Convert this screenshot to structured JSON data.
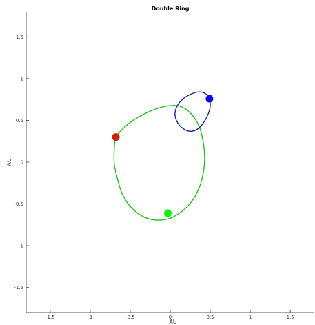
{
  "chart_data": {
    "type": "line",
    "title": "Double Ring",
    "xlabel": "AU",
    "ylabel": "AU",
    "xlim": [
      -1.8,
      1.8
    ],
    "ylim": [
      -1.8,
      1.8
    ],
    "x_ticks": [
      -1.5,
      -1,
      -0.5,
      0,
      0.5,
      1,
      1.5
    ],
    "y_ticks": [
      -1.5,
      -1,
      -0.5,
      0,
      0.5,
      1,
      1.5
    ],
    "x_tick_labels": [
      "-1.5",
      "-1",
      "-0.5",
      "0",
      "0.5",
      "1",
      "1.5"
    ],
    "y_tick_labels": [
      "-1.5",
      "-1",
      "-0.5",
      "0",
      "0.5",
      "1",
      "1.5"
    ],
    "grid": false,
    "series": [
      {
        "color": "#22bb22",
        "x": [
          -0.68,
          -0.58,
          -0.45,
          -0.25,
          -0.05,
          0.12,
          0.26,
          0.36,
          0.41,
          0.43,
          0.41,
          0.36,
          0.26,
          0.13,
          -0.03,
          -0.21,
          -0.36,
          -0.5,
          -0.6,
          -0.66,
          -0.7,
          -0.7,
          -0.68
        ],
        "y": [
          0.3,
          0.41,
          0.51,
          0.61,
          0.67,
          0.67,
          0.58,
          0.43,
          0.25,
          0.05,
          -0.14,
          -0.31,
          -0.48,
          -0.6,
          -0.68,
          -0.69,
          -0.64,
          -0.53,
          -0.38,
          -0.2,
          -0.02,
          0.15,
          0.3
        ]
      },
      {
        "color": "#1f1f9e",
        "x": [
          0.49,
          0.44,
          0.35,
          0.25,
          0.15,
          0.08,
          0.06,
          0.1,
          0.18,
          0.27,
          0.36,
          0.44,
          0.49,
          0.5,
          0.49
        ],
        "y": [
          0.76,
          0.82,
          0.84,
          0.81,
          0.75,
          0.66,
          0.56,
          0.46,
          0.39,
          0.37,
          0.41,
          0.51,
          0.62,
          0.7,
          0.76
        ]
      }
    ],
    "markers": [
      {
        "x": -0.68,
        "y": 0.3,
        "color": "#cc2200"
      },
      {
        "x": 0.49,
        "y": 0.76,
        "color": "#0a0ae8"
      },
      {
        "x": -0.03,
        "y": -0.61,
        "color": "#11ee11"
      }
    ]
  }
}
